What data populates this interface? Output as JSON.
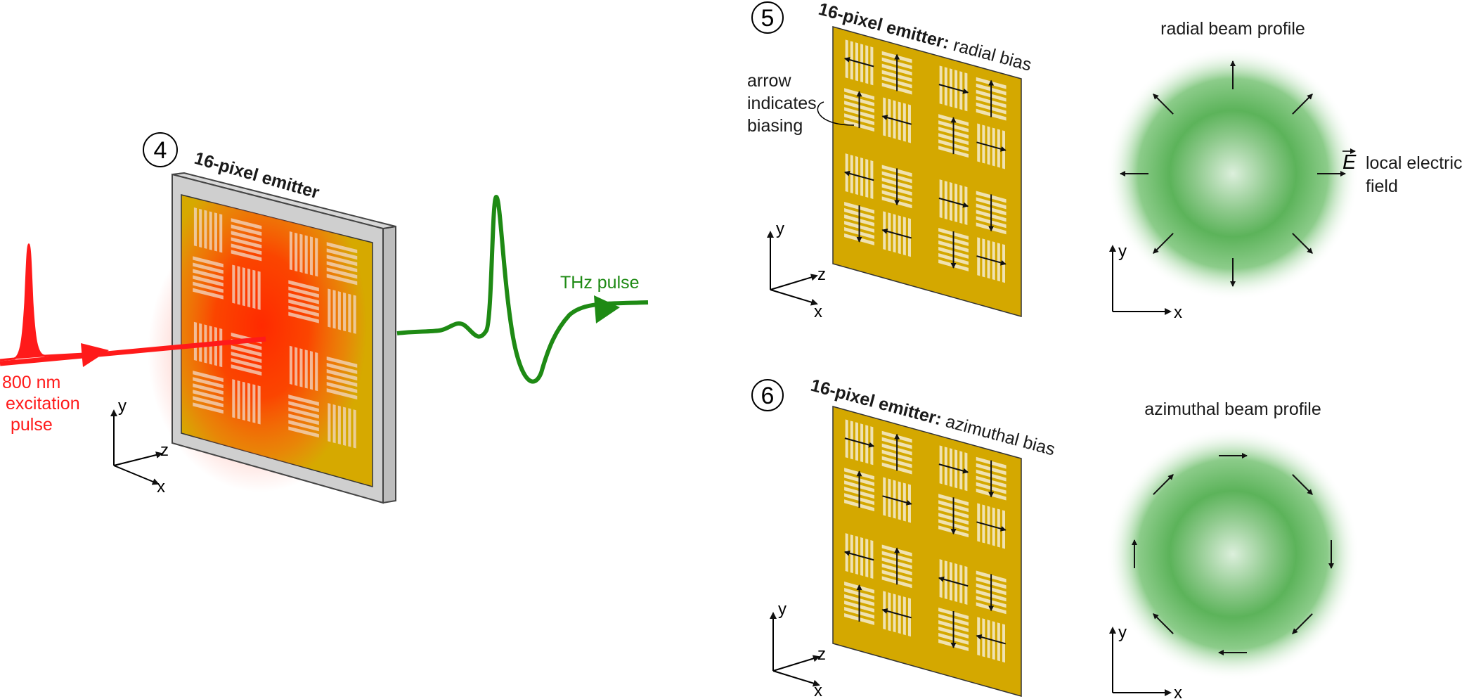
{
  "labels": {
    "step4": "4",
    "step5": "5",
    "step6": "6",
    "emitter": "16-pixel emitter",
    "emitter_colon": "16-pixel emitter:",
    "radial_bias": " radial bias",
    "azimuthal_bias": " azimuthal bias",
    "excitation_1": "800 nm",
    "excitation_2": "excitation",
    "excitation_3": "pulse",
    "thz": "THz pulse",
    "arrow_note_1": "arrow",
    "arrow_note_2": "indicates",
    "arrow_note_3": "biasing",
    "radial_profile": "radial beam profile",
    "azimuthal_profile": "azimuthal beam profile",
    "efield_symbol": "E",
    "efield_1": "local electric",
    "efield_2": "field",
    "axis_x": "x",
    "axis_y": "y",
    "axis_z": "z"
  },
  "colors": {
    "laser": "#ff1a1a",
    "thz": "#1e8a14",
    "gold": "#d4a800",
    "frame": "#c8c8c8",
    "beam_green": "#4caf50"
  },
  "pixel_bias": {
    "radial": [
      "left",
      "up",
      "right",
      "up",
      "up",
      "left",
      "up",
      "right",
      "left",
      "down",
      "right",
      "down",
      "down",
      "left",
      "down",
      "right"
    ],
    "azimuthal": [
      "right",
      "up",
      "right",
      "down",
      "up",
      "right",
      "down",
      "right",
      "left",
      "up",
      "left",
      "down",
      "up",
      "left",
      "down",
      "left"
    ]
  }
}
